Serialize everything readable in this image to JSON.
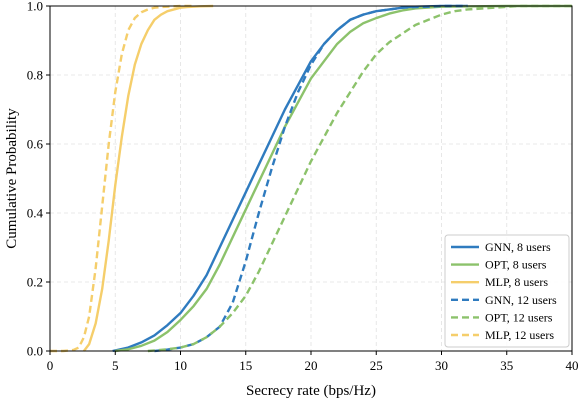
{
  "chart_data": {
    "type": "line",
    "title": "",
    "xlabel": "Secrecy rate (bps/Hz)",
    "ylabel": "Cumulative Probability",
    "xlim": [
      0,
      40
    ],
    "ylim": [
      0,
      1.0
    ],
    "xticks": [
      0,
      5,
      10,
      15,
      20,
      25,
      30,
      35,
      40
    ],
    "yticks": [
      0.0,
      0.2,
      0.4,
      0.6,
      0.8,
      1.0
    ],
    "xtick_labels": [
      "0",
      "5",
      "10",
      "15",
      "20",
      "25",
      "30",
      "35",
      "40"
    ],
    "ytick_labels": [
      "0.0",
      "0.2",
      "0.4",
      "0.6",
      "0.8",
      "1.0"
    ],
    "grid": true,
    "legend_position": "bottom-right",
    "series": [
      {
        "name": "GNN, 8 users",
        "color": "#2f7bbf",
        "dash": "solid",
        "x": [
          4.8,
          6,
          7,
          8,
          9,
          10,
          11,
          12,
          13,
          14,
          15,
          16,
          17,
          18,
          19,
          20,
          21,
          22,
          23,
          24,
          25,
          26,
          27,
          28,
          30,
          32
        ],
        "y": [
          0.0,
          0.01,
          0.025,
          0.045,
          0.075,
          0.11,
          0.16,
          0.22,
          0.3,
          0.38,
          0.46,
          0.54,
          0.62,
          0.7,
          0.77,
          0.84,
          0.89,
          0.93,
          0.96,
          0.975,
          0.985,
          0.99,
          0.995,
          0.998,
          1.0,
          1.0
        ]
      },
      {
        "name": "OPT, 8 users",
        "color": "#8cc26b",
        "dash": "solid",
        "x": [
          5,
          6,
          7,
          8,
          9,
          10,
          11,
          12,
          13,
          14,
          15,
          16,
          17,
          18,
          19,
          20,
          21,
          22,
          23,
          24,
          25,
          26,
          27,
          28,
          30,
          35,
          40
        ],
        "y": [
          0.0,
          0.005,
          0.015,
          0.03,
          0.055,
          0.09,
          0.13,
          0.18,
          0.25,
          0.33,
          0.41,
          0.49,
          0.57,
          0.65,
          0.72,
          0.79,
          0.84,
          0.89,
          0.925,
          0.95,
          0.965,
          0.978,
          0.987,
          0.993,
          0.998,
          1.0,
          1.0
        ]
      },
      {
        "name": "MLP, 8 users",
        "color": "#f5ce6b",
        "dash": "solid",
        "x": [
          2.6,
          3,
          3.5,
          4,
          4.5,
          5,
          5.5,
          6,
          6.5,
          7,
          7.5,
          8,
          8.5,
          9,
          9.5,
          10,
          10.5,
          11,
          11.5,
          12.5
        ],
        "y": [
          0.0,
          0.02,
          0.08,
          0.18,
          0.32,
          0.48,
          0.62,
          0.74,
          0.83,
          0.89,
          0.93,
          0.96,
          0.975,
          0.985,
          0.99,
          0.995,
          0.997,
          0.998,
          0.999,
          1.0
        ]
      },
      {
        "name": "GNN, 12 users",
        "color": "#2f7bbf",
        "dash": "dashed",
        "x": [
          8,
          9,
          10,
          11,
          12,
          13,
          14,
          15,
          16,
          17,
          18,
          19,
          20,
          21,
          22,
          23,
          24,
          25,
          26,
          27,
          28,
          29,
          30,
          32
        ],
        "y": [
          0.0,
          0.004,
          0.01,
          0.02,
          0.04,
          0.07,
          0.14,
          0.26,
          0.4,
          0.53,
          0.65,
          0.75,
          0.83,
          0.89,
          0.93,
          0.96,
          0.975,
          0.985,
          0.99,
          0.995,
          0.997,
          0.998,
          1.0,
          1.0
        ]
      },
      {
        "name": "OPT, 12 users",
        "color": "#8cc26b",
        "dash": "dashed",
        "x": [
          7.5,
          9,
          10,
          11,
          12,
          13,
          14,
          15,
          16,
          17,
          18,
          19,
          20,
          21,
          22,
          23,
          24,
          25,
          26,
          27,
          28,
          29,
          30,
          31,
          32,
          34,
          36,
          40
        ],
        "y": [
          0.0,
          0.005,
          0.01,
          0.02,
          0.04,
          0.07,
          0.11,
          0.16,
          0.23,
          0.31,
          0.39,
          0.47,
          0.55,
          0.62,
          0.69,
          0.75,
          0.81,
          0.86,
          0.895,
          0.92,
          0.945,
          0.96,
          0.975,
          0.985,
          0.99,
          0.995,
          1.0,
          1.0
        ]
      },
      {
        "name": "MLP, 12 users",
        "color": "#f5ce6b",
        "dash": "dashed",
        "x": [
          0,
          1,
          1.8,
          2.2,
          2.6,
          3,
          3.5,
          4,
          4.5,
          5,
          5.5,
          6,
          6.5,
          7,
          7.5,
          8,
          8.5,
          9,
          9.5,
          10,
          11
        ],
        "y": [
          0.0,
          0.0,
          0.003,
          0.01,
          0.04,
          0.1,
          0.24,
          0.42,
          0.6,
          0.75,
          0.86,
          0.93,
          0.965,
          0.982,
          0.99,
          0.995,
          0.997,
          0.998,
          0.999,
          1.0,
          1.0
        ]
      }
    ]
  }
}
